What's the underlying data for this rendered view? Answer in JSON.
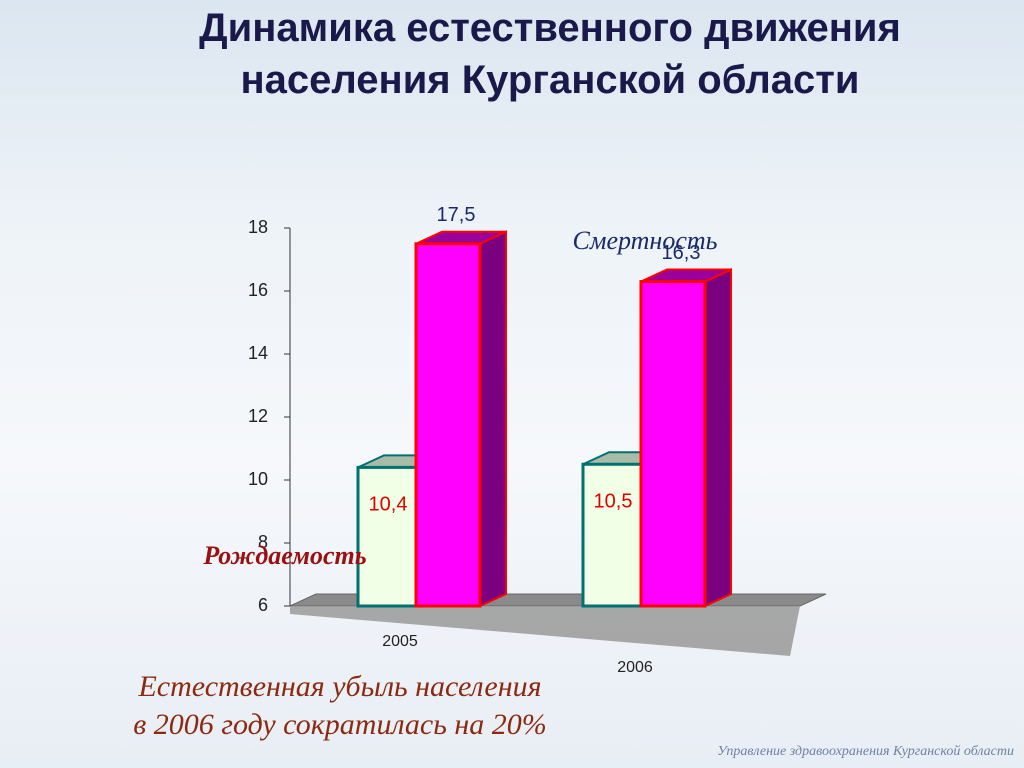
{
  "chart_data": {
    "type": "bar3d",
    "title": "Динамика естественного движения населения Курганской области",
    "categories": [
      "2005",
      "2006"
    ],
    "series": [
      {
        "name": "Рождаемость",
        "color": "#f0ffe6",
        "values": [
          10.4,
          10.5
        ],
        "value_labels": [
          "10,4",
          "10,5"
        ]
      },
      {
        "name": "Смертность",
        "color": "#ff00ff",
        "values": [
          17.5,
          16.3
        ],
        "value_labels": [
          "17,5",
          "16,3"
        ]
      }
    ],
    "ylim": [
      6,
      18
    ],
    "yticks": [
      6,
      8,
      10,
      12,
      14,
      16,
      18
    ],
    "grid": false
  },
  "note": [
    "Естественная убыль населения",
    "в 2006 году сократилась на 20%"
  ],
  "footer": "Управление здравоохранения  Курганской области"
}
